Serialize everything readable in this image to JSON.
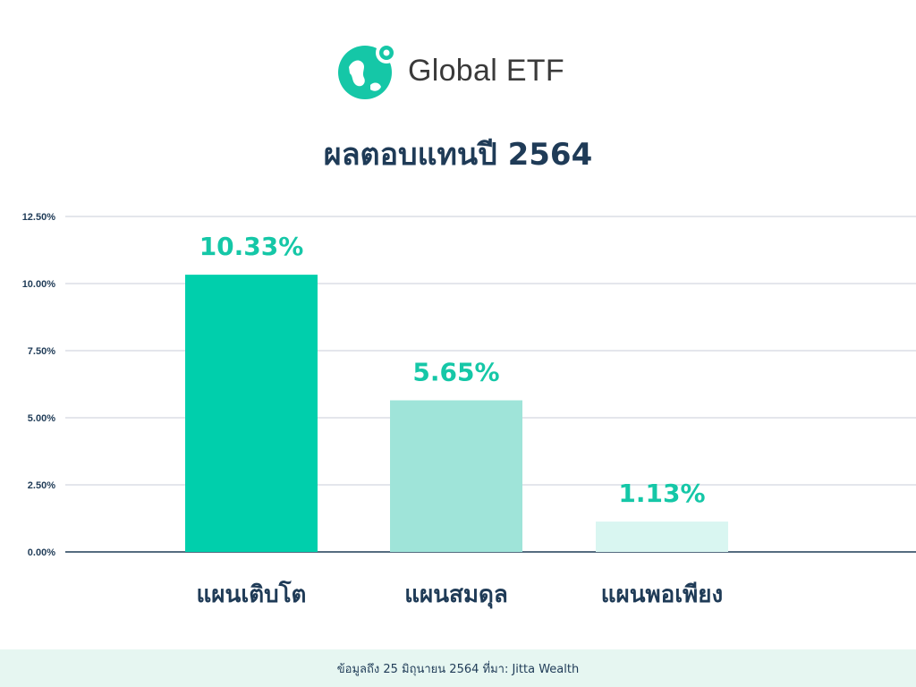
{
  "brand": {
    "name": "Global ETF",
    "icon": "globe-pin-icon",
    "color": "#15c7a7"
  },
  "chart_data": {
    "type": "bar",
    "title": "ผลตอบแทนปี 2564",
    "xlabel": "",
    "ylabel": "",
    "categories": [
      "แผนเติบโต",
      "แผนสมดุล",
      "แผนพอเพียง"
    ],
    "values": [
      10.33,
      5.65,
      1.13
    ],
    "value_labels": [
      "10.33%",
      "5.65%",
      "1.13%"
    ],
    "bar_colors": [
      "#00cfac",
      "#9fe4d9",
      "#d9f6f1"
    ],
    "label_color": "#15c7a7",
    "ylim": [
      0,
      12.5
    ],
    "yticks": [
      0,
      2.5,
      5,
      7.5,
      10,
      12.5
    ],
    "ytick_labels": [
      "0.00%",
      "2.50%",
      "5.00%",
      "7.50%",
      "10.00%",
      "12.50%"
    ],
    "grid": true,
    "legend": "none"
  },
  "footer": {
    "text": "ข้อมูลถึง 25 มิถุนายน 2564 ที่มา: Jitta Wealth"
  }
}
